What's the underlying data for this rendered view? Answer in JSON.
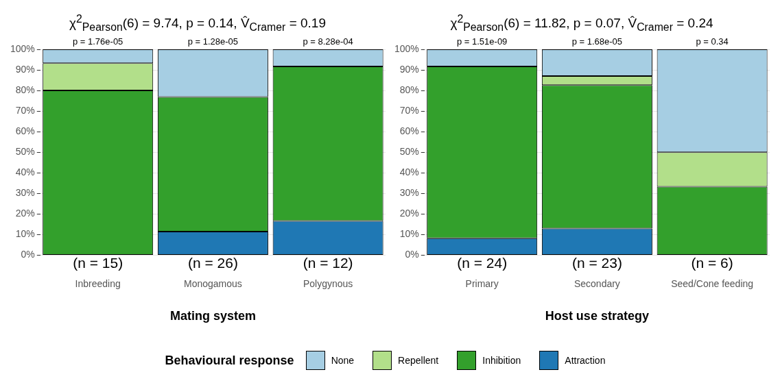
{
  "chart_data": [
    {
      "type": "bar",
      "stacked": true,
      "title": "χ$^{2}$$_{Pearson}$(6) = 9.74, p = 0.14, V̂$_{Cramer}$ = 0.19",
      "xlabel": "Mating system",
      "categories": [
        "Inbreeding",
        "Monogamous",
        "Polygynous"
      ],
      "series": [
        {
          "name": "Attraction",
          "color": "#1f78b4",
          "values": [
            0,
            11.5,
            16.7
          ]
        },
        {
          "name": "Inhibition",
          "color": "#33a02c",
          "values": [
            80,
            65.4,
            75
          ]
        },
        {
          "name": "Repellent",
          "color": "#b2df8a",
          "values": [
            13.3,
            0,
            0
          ]
        },
        {
          "name": "None",
          "color": "#a6cee3",
          "values": [
            6.7,
            23.1,
            8.3
          ]
        }
      ],
      "ylim": [
        0,
        100
      ],
      "yticks": [
        {
          "value": 0,
          "label": "0%"
        },
        {
          "value": 10,
          "label": "10%"
        },
        {
          "value": 20,
          "label": "20%"
        },
        {
          "value": 30,
          "label": "30%"
        },
        {
          "value": 40,
          "label": "40%"
        },
        {
          "value": 50,
          "label": "50%"
        },
        {
          "value": 60,
          "label": "60%"
        },
        {
          "value": 70,
          "label": "70%"
        },
        {
          "value": 80,
          "label": "80%"
        },
        {
          "value": 90,
          "label": "90%"
        },
        {
          "value": 100,
          "label": "100%"
        }
      ],
      "grid": "y",
      "legend": "bottom",
      "legend_title": "Behavioural response",
      "annotations": [
        {
          "text": "p = 1.76e-05",
          "x": "Inbreeding",
          "y": 100
        },
        {
          "text": "p = 1.28e-05",
          "x": "Monogamous",
          "y": 100
        },
        {
          "text": "p = 8.28e-04",
          "x": "Polygynous",
          "y": 100
        },
        {
          "text": "(n = 15)",
          "x": "Inbreeding",
          "y": 0
        },
        {
          "text": "(n = 26)",
          "x": "Monogamous",
          "y": 0
        },
        {
          "text": "(n = 12)",
          "x": "Polygynous",
          "y": 0
        }
      ]
    },
    {
      "type": "bar",
      "stacked": true,
      "title": "χ$^{2}$$_{Pearson}$(6) = 11.82, p = 0.07, V̂$_{Cramer}$ = 0.24",
      "xlabel": "Host use strategy",
      "categories": [
        "Primary",
        "Secondary",
        "Seed/Cone feeding"
      ],
      "series": [
        {
          "name": "Attraction",
          "color": "#1f78b4",
          "values": [
            8.3,
            13,
            0
          ]
        },
        {
          "name": "Inhibition",
          "color": "#33a02c",
          "values": [
            83.4,
            69.6,
            33.3
          ]
        },
        {
          "name": "Repellent",
          "color": "#b2df8a",
          "values": [
            0,
            4.4,
            16.7
          ]
        },
        {
          "name": "None",
          "color": "#a6cee3",
          "values": [
            8.3,
            13,
            50
          ]
        }
      ],
      "ylim": [
        0,
        100
      ],
      "yticks": [
        {
          "value": 0,
          "label": "0%"
        },
        {
          "value": 10,
          "label": "10%"
        },
        {
          "value": 20,
          "label": "20%"
        },
        {
          "value": 30,
          "label": "30%"
        },
        {
          "value": 40,
          "label": "40%"
        },
        {
          "value": 50,
          "label": "50%"
        },
        {
          "value": 60,
          "label": "60%"
        },
        {
          "value": 70,
          "label": "70%"
        },
        {
          "value": 80,
          "label": "80%"
        },
        {
          "value": 90,
          "label": "90%"
        },
        {
          "value": 100,
          "label": "100%"
        }
      ],
      "grid": "y",
      "annotations": [
        {
          "text": "p = 1.51e-09",
          "x": "Primary",
          "y": 100
        },
        {
          "text": "p = 1.68e-05",
          "x": "Secondary",
          "y": 100
        },
        {
          "text": "p = 0.34",
          "x": "Seed/Cone feeding",
          "y": 100
        },
        {
          "text": "(n = 24)",
          "x": "Primary",
          "y": 0
        },
        {
          "text": "(n = 23)",
          "x": "Secondary",
          "y": 0
        },
        {
          "text": "(n = 6)",
          "x": "Seed/Cone feeding",
          "y": 0
        }
      ]
    }
  ]
}
